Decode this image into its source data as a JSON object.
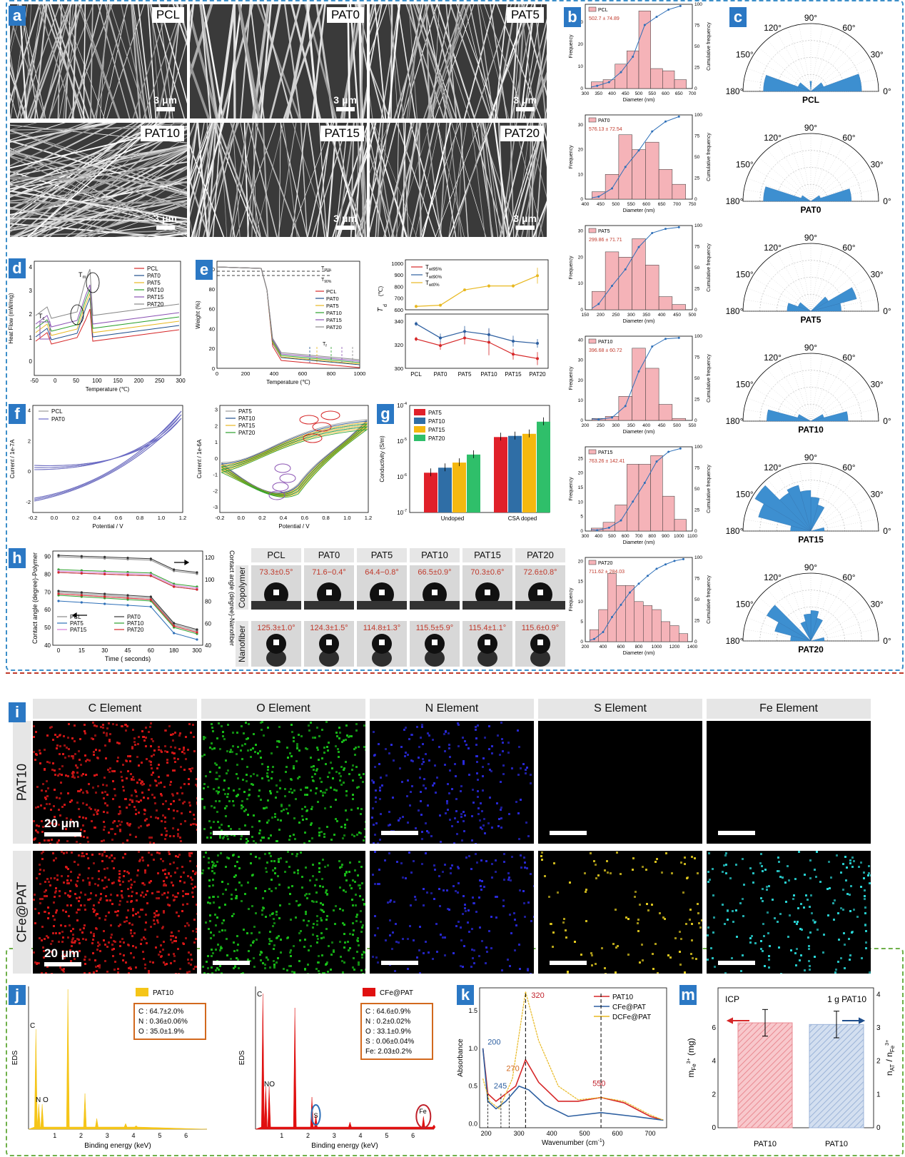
{
  "panel_letters": {
    "a": "a",
    "b": "b",
    "c": "c",
    "d": "d",
    "e": "e",
    "f": "f",
    "g": "g",
    "h": "h",
    "i": "i",
    "j": "j",
    "k": "k",
    "m": "m"
  },
  "sem": {
    "scale": "3 μm",
    "images": [
      {
        "label": "PCL"
      },
      {
        "label": "PAT0"
      },
      {
        "label": "PAT5"
      },
      {
        "label": "PAT10"
      },
      {
        "label": "PAT15"
      },
      {
        "label": "PAT20"
      }
    ]
  },
  "histograms": {
    "ylabel": "Frequency",
    "y2label": "Cumulative frequency",
    "xlabel": "Diameter (nm)",
    "items": [
      {
        "name": "PCL",
        "stat": "502.7 ± 74.89",
        "xticks": [
          "300",
          "350",
          "400",
          "450",
          "500",
          "550",
          "600",
          "650",
          "700"
        ],
        "yticks": [
          "0",
          "10",
          "20",
          "30"
        ],
        "bars": [
          3,
          4,
          11,
          17,
          35,
          9,
          8,
          4
        ],
        "ymax": 38
      },
      {
        "name": "PAT0",
        "stat": "576.13 ± 72.54",
        "xticks": [
          "400",
          "450",
          "500",
          "550",
          "600",
          "650",
          "700",
          "750"
        ],
        "yticks": [
          "0",
          "10",
          "20",
          "30"
        ],
        "bars": [
          3,
          10,
          26,
          20,
          23,
          12,
          6
        ],
        "ymax": 34
      },
      {
        "name": "PAT5",
        "stat": "299.86 ± 71.71",
        "xticks": [
          "150",
          "200",
          "250",
          "300",
          "350",
          "400",
          "450",
          "500"
        ],
        "yticks": [
          "0",
          "10",
          "20",
          "30"
        ],
        "bars": [
          7,
          22,
          20,
          27,
          17,
          5,
          2
        ],
        "ymax": 32
      },
      {
        "name": "PAT10",
        "stat": "396.68 ± 60.72",
        "xticks": [
          "200",
          "250",
          "300",
          "350",
          "400",
          "450",
          "500",
          "550"
        ],
        "yticks": [
          "0",
          "10",
          "20",
          "30",
          "40"
        ],
        "bars": [
          1,
          2,
          12,
          36,
          26,
          8,
          1
        ],
        "ymax": 42
      },
      {
        "name": "PAT15",
        "stat": "763.26 ± 142.41",
        "xticks": [
          "300",
          "400",
          "500",
          "600",
          "700",
          "800",
          "900",
          "1000",
          "1100"
        ],
        "yticks": [
          "0",
          "5",
          "10",
          "15",
          "20",
          "25"
        ],
        "bars": [
          1,
          3,
          9,
          23,
          23,
          26,
          12,
          4
        ],
        "ymax": 29
      },
      {
        "name": "PAT20",
        "stat": "711.62 ± 284.03",
        "xticks": [
          "200",
          "400",
          "600",
          "800",
          "1000",
          "1200",
          "1400"
        ],
        "yticks": [
          "0",
          "5",
          "10",
          "15",
          "20"
        ],
        "bars": [
          3,
          8,
          17,
          14,
          14,
          10,
          9,
          8,
          5,
          4,
          2
        ],
        "ymax": 21
      }
    ],
    "y2ticks": [
      "0",
      "25",
      "50",
      "75",
      "100"
    ]
  },
  "polar": {
    "angle_labels": [
      "0°",
      "30°",
      "60°",
      "90°",
      "120°",
      "150°",
      "180°"
    ],
    "items": [
      {
        "name": "PCL",
        "petals": [
          [
            0,
            20,
            0.75
          ],
          [
            20,
            40,
            0.2
          ],
          [
            160,
            180,
            0.7
          ],
          [
            140,
            160,
            0.2
          ],
          [
            85,
            95,
            0.15
          ]
        ]
      },
      {
        "name": "PAT0",
        "petals": [
          [
            0,
            18,
            0.6
          ],
          [
            162,
            180,
            0.7
          ],
          [
            18,
            35,
            0.15
          ],
          [
            145,
            162,
            0.15
          ]
        ]
      },
      {
        "name": "PAT5",
        "petals": [
          [
            0,
            15,
            0.45
          ],
          [
            15,
            30,
            0.7
          ],
          [
            30,
            45,
            0.3
          ],
          [
            160,
            180,
            0.35
          ],
          [
            140,
            160,
            0.2
          ]
        ]
      },
      {
        "name": "PAT10",
        "petals": [
          [
            0,
            15,
            0.55
          ],
          [
            165,
            180,
            0.65
          ],
          [
            15,
            30,
            0.2
          ],
          [
            150,
            165,
            0.2
          ]
        ]
      },
      {
        "name": "PAT15",
        "petals": [
          [
            0,
            15,
            0.2
          ],
          [
            60,
            75,
            0.4
          ],
          [
            75,
            90,
            0.5
          ],
          [
            90,
            105,
            0.6
          ],
          [
            105,
            120,
            0.7
          ],
          [
            120,
            135,
            0.65
          ],
          [
            135,
            150,
            0.95
          ],
          [
            150,
            165,
            0.8
          ],
          [
            165,
            180,
            0.3
          ]
        ]
      },
      {
        "name": "PAT20",
        "petals": [
          [
            0,
            15,
            0.2
          ],
          [
            60,
            75,
            0.35
          ],
          [
            75,
            90,
            0.45
          ],
          [
            90,
            105,
            0.4
          ],
          [
            105,
            120,
            0.3
          ],
          [
            135,
            150,
            0.75
          ],
          [
            150,
            165,
            0.55
          ],
          [
            165,
            180,
            0.3
          ]
        ]
      }
    ]
  },
  "panel_d": {
    "ylabel": "Heat Flow (mW/mg)",
    "xlabel": "Temperature (℃)",
    "xticks": [
      "-50",
      "0",
      "50",
      "100",
      "150",
      "200",
      "250",
      "300"
    ],
    "yticks": [
      "0",
      "1",
      "2",
      "3",
      "4"
    ],
    "tm": "T",
    "tm_sub": "m",
    "tc": "T",
    "tc_sub": "c",
    "legend": [
      {
        "name": "PCL",
        "color": "#d62728"
      },
      {
        "name": "PAT0",
        "color": "#1f4e8c"
      },
      {
        "name": "PAT5",
        "color": "#e8b820"
      },
      {
        "name": "PAT10",
        "color": "#2ca02c"
      },
      {
        "name": "PAT15",
        "color": "#8a52b3"
      },
      {
        "name": "PAT20",
        "color": "#888888"
      }
    ]
  },
  "panel_e": {
    "ylabel": "Weight (%)",
    "xlabel": "Temperature (℃)",
    "xticks": [
      "0",
      "100",
      "200",
      "300",
      "400",
      "500",
      "600",
      "700",
      "800",
      "900",
      "1000"
    ],
    "yticks": [
      "0",
      "20",
      "40",
      "60",
      "80",
      "100"
    ],
    "t95": "T",
    "t95_sub": "95%",
    "t90": "T",
    "t90_sub": "90%",
    "tf": "T",
    "tf_sub": "f"
  },
  "panel_e2": {
    "ylabel": "T",
    "ylabel_sub": "d",
    "ylabel_unit": "(℃)",
    "categories": [
      "PCL",
      "PAT0",
      "PAT5",
      "PAT10",
      "PAT15",
      "PAT20"
    ],
    "yticks_top": [
      "600",
      "700",
      "800",
      "900",
      "1000"
    ],
    "yticks_bot": [
      "300",
      "320",
      "340"
    ],
    "legend": [
      {
        "name": "T",
        "sub": "wt95%",
        "color": "#d62728"
      },
      {
        "name": "T",
        "sub": "wt90%",
        "color": "#2d5fa0"
      },
      {
        "name": "T",
        "sub": "wt0%",
        "color": "#e8b820"
      }
    ],
    "series": [
      {
        "values": [
          327,
          321,
          328,
          324,
          313,
          309
        ],
        "err": [
          2,
          4,
          6,
          12,
          5,
          6
        ],
        "color": "#d62728"
      },
      {
        "values": [
          341,
          328,
          334,
          331,
          325,
          323
        ],
        "err": [
          2,
          4,
          5,
          6,
          5,
          4
        ],
        "color": "#2d5fa0"
      },
      {
        "values": [
          590,
          600,
          735,
          770,
          770,
          860
        ],
        "err": [
          15,
          10,
          10,
          15,
          15,
          70
        ],
        "color": "#e8b820"
      }
    ]
  },
  "panel_f": {
    "ylabel": "Current / 1e-7A",
    "ylabel2": "Current / 1e-6A",
    "xlabel": "Potential / V",
    "xticks": [
      "-0.2",
      "0.0",
      "0.2",
      "0.4",
      "0.6",
      "0.8",
      "1.0",
      "1.2"
    ],
    "yticks": [
      "-2",
      "0",
      "2",
      "4"
    ],
    "yticks2": [
      "-3",
      "-2",
      "-1",
      "0",
      "1",
      "2",
      "3"
    ],
    "legend1": [
      {
        "name": "PCL",
        "color": "#999999"
      },
      {
        "name": "PAT0",
        "color": "#6b6bc8"
      }
    ],
    "legend2": [
      {
        "name": "PAT5",
        "color": "#999999"
      },
      {
        "name": "PAT10",
        "color": "#1f4e8c"
      },
      {
        "name": "PAT15",
        "color": "#e8b820"
      },
      {
        "name": "PAT20",
        "color": "#2ca02c"
      }
    ]
  },
  "panel_g": {
    "ylabel": "Conductivity (S/m)",
    "categories": [
      "Undoped",
      "CSA doped"
    ],
    "yticks": [
      "10",
      "10",
      "10",
      "10"
    ],
    "yexp": [
      "-7",
      "-6",
      "-5",
      "-4"
    ],
    "legend": [
      {
        "name": "PAT5",
        "color": "#e0202a"
      },
      {
        "name": "PAT10",
        "color": "#2f6ea6"
      },
      {
        "name": "PAT15",
        "color": "#f5b80f"
      },
      {
        "name": "PAT20",
        "color": "#2fbf6a"
      }
    ],
    "values": [
      [
        1.3e-06,
        1.8e-06,
        2.5e-06,
        4.2e-06
      ],
      [
        1.3e-05,
        1.4e-05,
        1.6e-05,
        3.5e-05
      ]
    ]
  },
  "panel_h": {
    "ylabel": "Contact angle (degree)-Polymer",
    "ylabel2": "Contact angle (degree)-Nanofiber",
    "xlabel": "Time ( seconds)",
    "xticks": [
      "0",
      "15",
      "30",
      "45",
      "60",
      "180",
      "300"
    ],
    "yticks": [
      "40",
      "50",
      "60",
      "70",
      "80",
      "90"
    ],
    "yticks2": [
      "40",
      "60",
      "80",
      "100",
      "120"
    ],
    "legend": [
      {
        "name": "PCL",
        "color": "#888888"
      },
      {
        "name": "PAT0",
        "color": "#333333"
      },
      {
        "name": "PAT5",
        "color": "#2d6fb8"
      },
      {
        "name": "PAT10",
        "color": "#2ca02c"
      },
      {
        "name": "PAT15",
        "color": "#d67bd6"
      },
      {
        "name": "PAT20",
        "color": "#d62728"
      }
    ]
  },
  "drops": {
    "row1": "Copolymer",
    "row2": "Nanofiber",
    "cols": [
      {
        "name": "PCL",
        "top": "73.3±0.5°",
        "bottom": "125.3±1.0°"
      },
      {
        "name": "PAT0",
        "top": "71.6−0.4°",
        "bottom": "124.3±1.5°"
      },
      {
        "name": "PAT5",
        "top": "64.4−0.8°",
        "bottom": "114.8±1.3°"
      },
      {
        "name": "PAT10",
        "top": "66.5±0.9°",
        "bottom": "115.5±5.9°"
      },
      {
        "name": "PAT15",
        "top": "70.3±0.6°",
        "bottom": "115.4±1.1°"
      },
      {
        "name": "PAT20",
        "top": "72.6±0.8°",
        "bottom": "115.6±0.9°"
      }
    ]
  },
  "eds_maps": {
    "headers": [
      "C Element",
      "O Element",
      "N Element",
      "S Element",
      "Fe Element"
    ],
    "rows": [
      "PAT10",
      "CFe@PAT"
    ],
    "scale": "20 μm",
    "colors": [
      "#e01818",
      "#19c419",
      "#2a2ae0",
      "#e8d020",
      "#2adada"
    ]
  },
  "panel_j": {
    "ylabel": "EDS",
    "xlabel": "Binding energy (keV)",
    "xticks": [
      "1",
      "2",
      "3",
      "4",
      "5",
      "6"
    ],
    "left": {
      "legend": "PAT10",
      "color": "#f5c518",
      "lines": [
        "C : 64.7±2.0%",
        "N : 0.36±0.06%",
        "O : 35.0±1.9%"
      ],
      "c": "C",
      "n": "N",
      "o": "O"
    },
    "right": {
      "legend": "CFe@PAT",
      "color": "#e01010",
      "lines": [
        "C : 64.6±0.9%",
        "N : 0.2±0.02%",
        "O : 33.1±0.9%",
        "S : 0.06±0.04%",
        "Fe: 2.03±0.2%"
      ],
      "c": "C",
      "no": "NO",
      "s": "S",
      "fe": "Fe"
    }
  },
  "panel_k": {
    "ylabel": "Absorbance",
    "xlabel": "Wavenumber (cm",
    "xlabel_sup": "-1",
    "xlabel_end": ")",
    "xticks": [
      "200",
      "300",
      "400",
      "500",
      "600",
      "700"
    ],
    "yticks": [
      "0.0",
      "0.5",
      "1.0",
      "1.5"
    ],
    "legend": [
      {
        "name": "PAT10",
        "color": "#d62728"
      },
      {
        "name": "CFe@PAT",
        "color": "#2d5fa0"
      },
      {
        "name": "DCFe@PAT",
        "color": "#e8b820"
      }
    ],
    "peaks": [
      "320",
      "200",
      "245",
      "270",
      "550"
    ]
  },
  "panel_m": {
    "title_left": "ICP",
    "title_right": "1 g PAT10",
    "ylabel": "m",
    "ylabel_sub": "Fe",
    "ylabel_sup": "3+",
    "ylabel_unit": " (mg)",
    "ylabel2": "n",
    "ylabel2_sub": "AT",
    "ylabel2_mid": " / n",
    "ylabel2_sub2": "Fe",
    "ylabel2_sup2": "3+",
    "yticks": [
      "0",
      "2",
      "4",
      "6"
    ],
    "yticks2": [
      "0",
      "1",
      "2",
      "3",
      "4"
    ],
    "categories": [
      "PAT10",
      "PAT10"
    ],
    "values": [
      6.3,
      3.1
    ],
    "err": [
      0.8,
      0.4
    ]
  }
}
